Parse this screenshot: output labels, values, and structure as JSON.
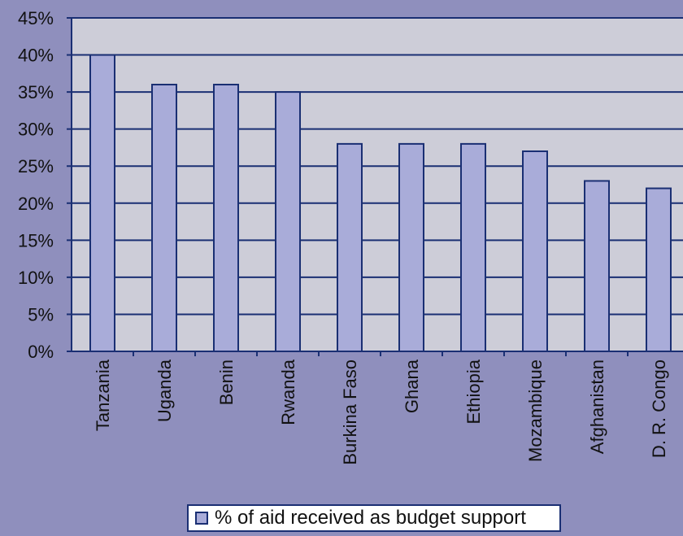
{
  "chart_data": {
    "type": "bar",
    "categories": [
      "Tanzania",
      "Uganda",
      "Benin",
      "Rwanda",
      "Burkina Faso",
      "Ghana",
      "Ethiopia",
      "Mozambique",
      "Afghanistan",
      "D. R. Congo"
    ],
    "series": [
      {
        "name": "% of aid received as budget support",
        "values": [
          40,
          36,
          36,
          35,
          28,
          28,
          28,
          27,
          23,
          22
        ]
      }
    ],
    "ylim": [
      0,
      45
    ],
    "yticks": [
      "0%",
      "5%",
      "10%",
      "15%",
      "20%",
      "25%",
      "30%",
      "35%",
      "40%",
      "45%"
    ],
    "grid": true,
    "legend_position": "bottom",
    "colors": {
      "page_background": "#8f8fbd",
      "plot_background": "#cdcdd8",
      "bar_fill": "#a9acd9",
      "line": "#1a2f73"
    }
  },
  "legend": {
    "label": "% of aid received as budget support"
  }
}
